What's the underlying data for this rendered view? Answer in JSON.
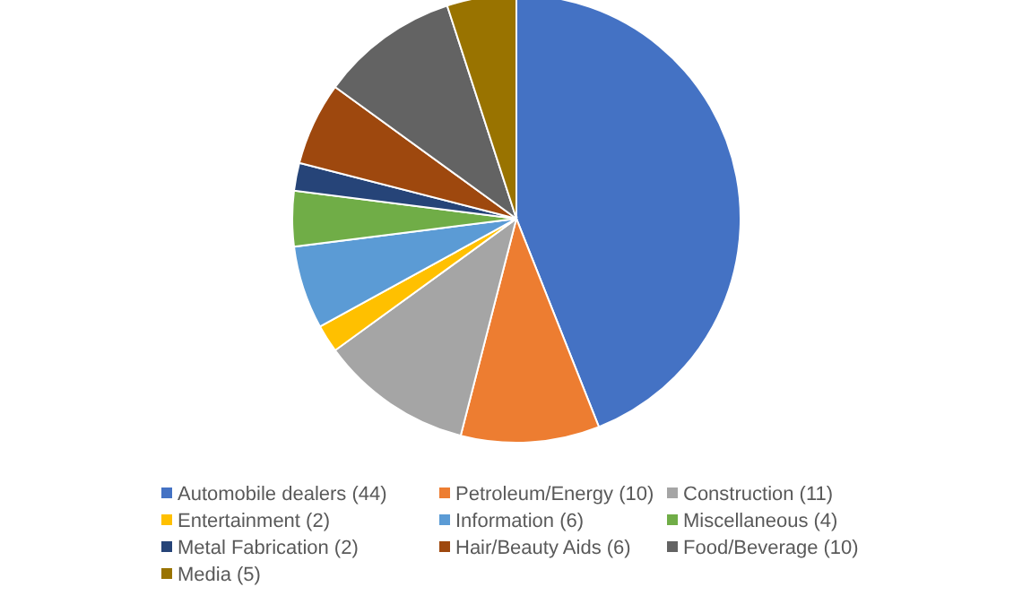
{
  "chart_data": {
    "type": "pie",
    "categories": [
      "Automobile dealers (44)",
      "Petroleum/Energy (10)",
      "Construction (11)",
      "Entertainment (2)",
      "Information (6)",
      "Miscellaneous (4)",
      "Metal Fabrication (2)",
      "Hair/Beauty Aids (6)",
      "Food/Beverage (10)",
      "Media (5)"
    ],
    "values": [
      44,
      10,
      11,
      2,
      6,
      4,
      2,
      6,
      10,
      5
    ],
    "colors": [
      "#4472c4",
      "#ed7d31",
      "#a5a5a5",
      "#ffc000",
      "#5b9bd5",
      "#70ad47",
      "#264478",
      "#9e480e",
      "#636363",
      "#997300"
    ],
    "legend": "bottom"
  }
}
